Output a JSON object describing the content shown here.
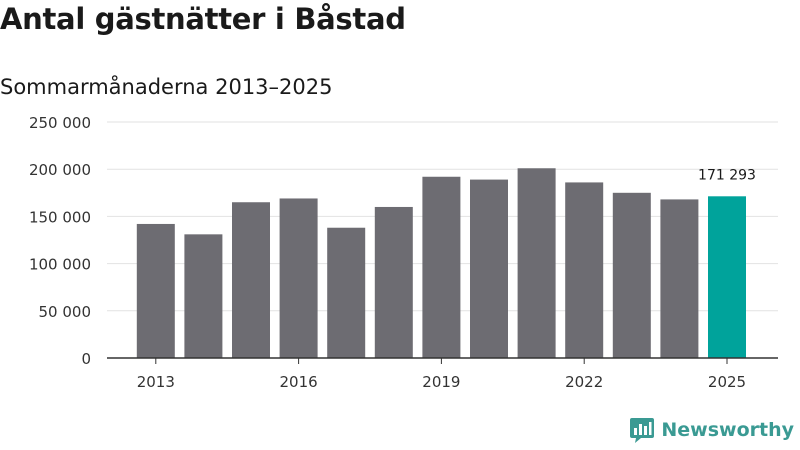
{
  "header": {
    "title": "Antal gästnätter i Båstad",
    "subtitle": "Sommarmånaderna 2013–2025"
  },
  "branding": {
    "logo_text": "Newsworthy",
    "logo_color": "#3a9a93"
  },
  "colors": {
    "bar": "#6d6c72",
    "highlight": "#00a39b",
    "grid": "#e2e2e2",
    "axis": "#333333",
    "text": "#333333"
  },
  "chart_data": {
    "type": "bar",
    "title": "Antal gästnätter i Båstad",
    "subtitle": "Sommarmånaderna 2013–2025",
    "categories": [
      "2013",
      "2014",
      "2015",
      "2016",
      "2017",
      "2018",
      "2019",
      "2020",
      "2021",
      "2022",
      "2023",
      "2024",
      "2025"
    ],
    "values": [
      142000,
      131000,
      165000,
      169000,
      138000,
      160000,
      192000,
      189000,
      201000,
      186000,
      175000,
      168000,
      171293
    ],
    "highlight_index": 12,
    "data_labels": [
      {
        "index": 12,
        "text": "171 293"
      }
    ],
    "x_tick_labels": [
      "2013",
      "2016",
      "2019",
      "2022",
      "2025"
    ],
    "y_ticks": [
      0,
      50000,
      100000,
      150000,
      200000,
      250000
    ],
    "y_tick_labels": [
      "0",
      "50 000",
      "100 000",
      "150 000",
      "200 000",
      "250 000"
    ],
    "ylim": [
      0,
      250000
    ],
    "grid": true,
    "legend": "none"
  }
}
